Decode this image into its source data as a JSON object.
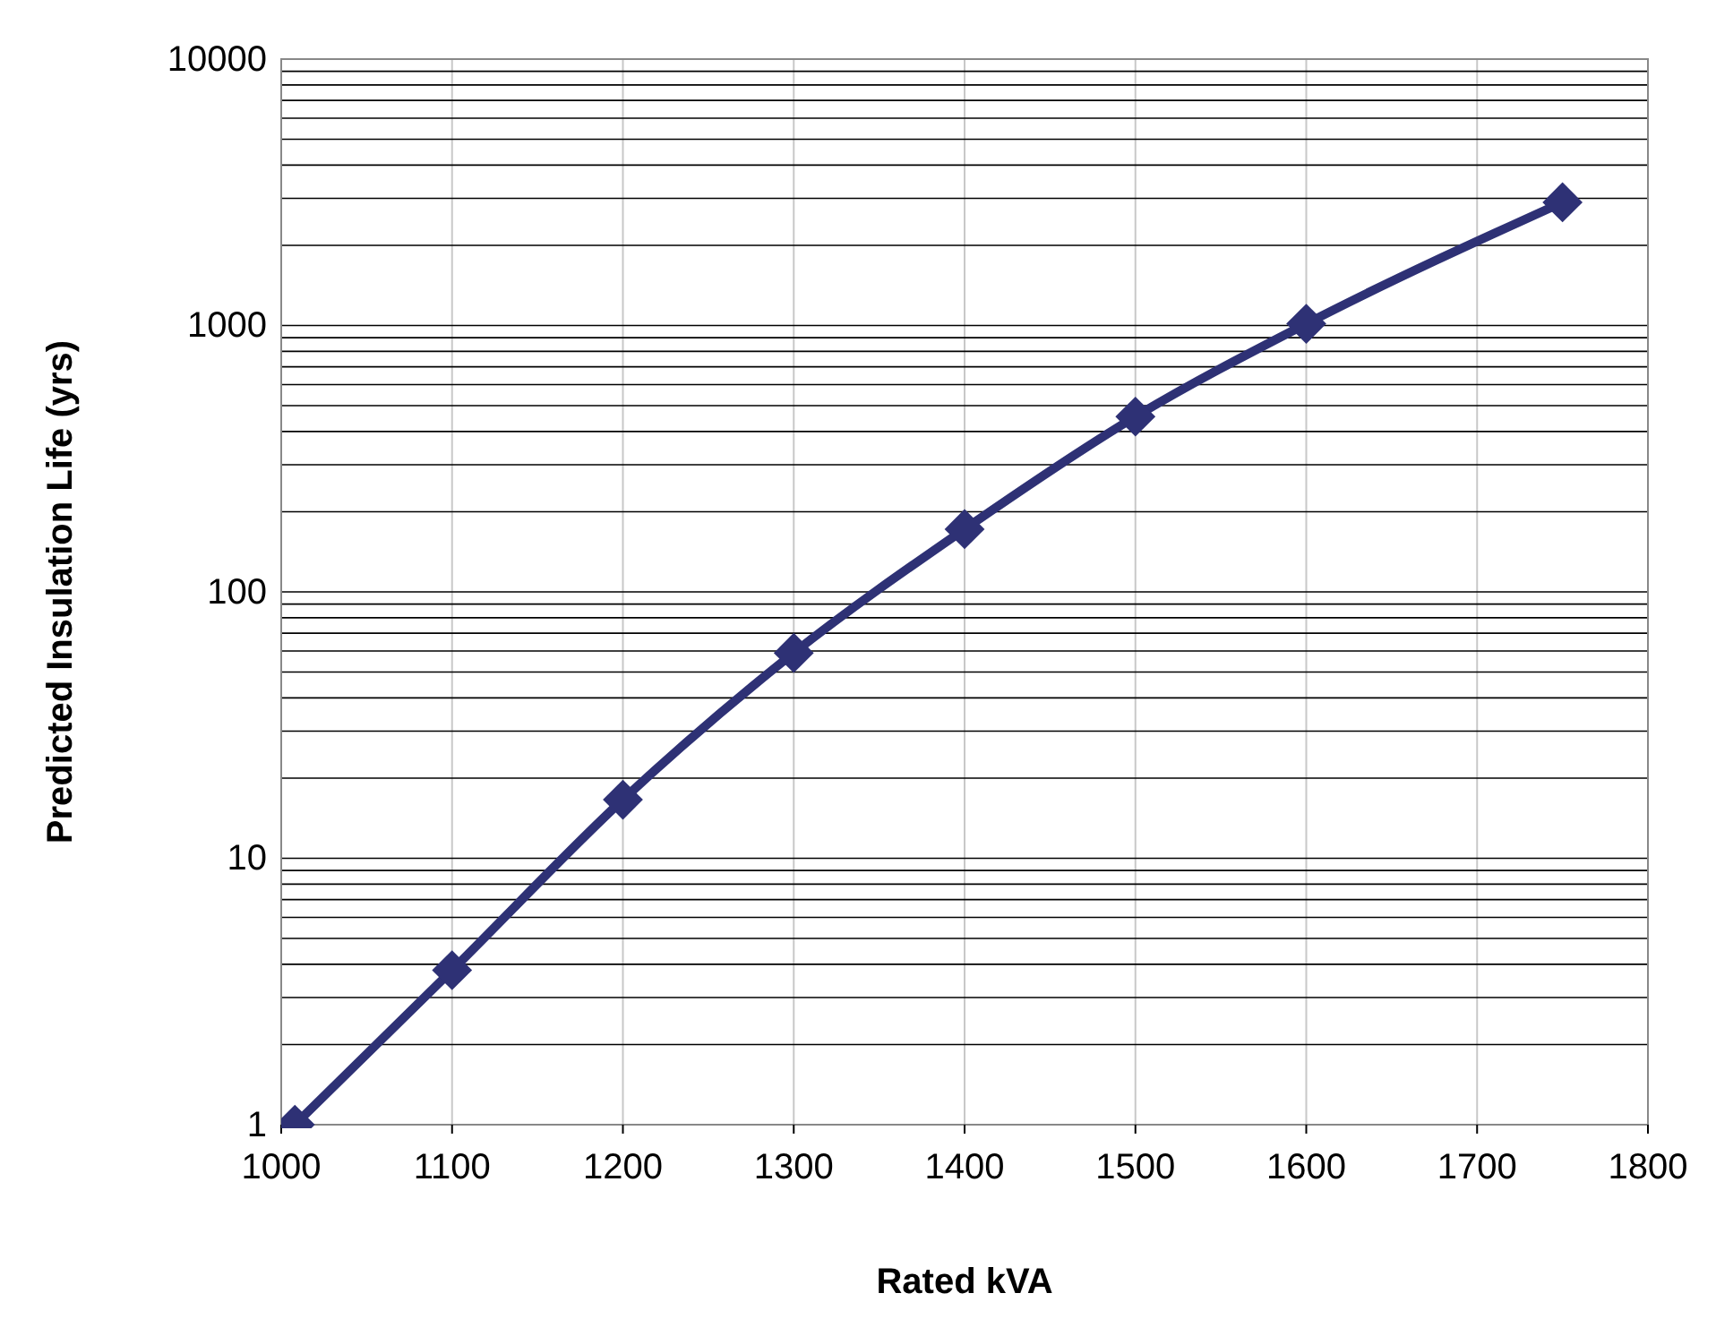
{
  "chart_data": {
    "type": "line",
    "xlabel": "Rated kVA",
    "ylabel": "Predicted Insulation Life (yrs)",
    "xlim": [
      1000,
      1800
    ],
    "xticks": [
      1000,
      1100,
      1200,
      1300,
      1400,
      1500,
      1600,
      1700,
      1800
    ],
    "ylim": [
      1,
      10000
    ],
    "log": true,
    "yticks": [
      1,
      {
        "value": 2,
        "label": null
      },
      {
        "value": 3,
        "label": null
      },
      {
        "value": 4,
        "label": null
      },
      {
        "value": 5,
        "label": null
      },
      {
        "value": 6,
        "label": null
      },
      {
        "value": 7,
        "label": null
      },
      {
        "value": 8,
        "label": null
      },
      {
        "value": 9,
        "label": null
      },
      10,
      {
        "value": 20,
        "label": null
      },
      {
        "value": 30,
        "label": null
      },
      {
        "value": 40,
        "label": null
      },
      {
        "value": 50,
        "label": null
      },
      {
        "value": 60,
        "label": null
      },
      {
        "value": 70,
        "label": null
      },
      {
        "value": 80,
        "label": null
      },
      {
        "value": 90,
        "label": null
      },
      100,
      {
        "value": 200,
        "label": null
      },
      {
        "value": 300,
        "label": null
      },
      {
        "value": 400,
        "label": null
      },
      {
        "value": 500,
        "label": null
      },
      {
        "value": 600,
        "label": null
      },
      {
        "value": 700,
        "label": null
      },
      {
        "value": 800,
        "label": null
      },
      {
        "value": 900,
        "label": null
      },
      1000,
      {
        "value": 2000,
        "label": null
      },
      {
        "value": 3000,
        "label": null
      },
      {
        "value": 4000,
        "label": null
      },
      {
        "value": 5000,
        "label": null
      },
      {
        "value": 6000,
        "label": null
      },
      {
        "value": 7000,
        "label": null
      },
      {
        "value": 8000,
        "label": null
      },
      {
        "value": 9000,
        "label": null
      },
      10000
    ],
    "grid": true,
    "line_style": "solid",
    "marker": "diamond",
    "series": [
      {
        "color": "#2e3175",
        "x": [
          1008,
          1100,
          1200,
          1300,
          1400,
          1500,
          1600,
          1750
        ],
        "values": [
          1,
          3.8,
          16.6,
          59,
          172,
          455,
          1015,
          2900
        ]
      }
    ]
  }
}
